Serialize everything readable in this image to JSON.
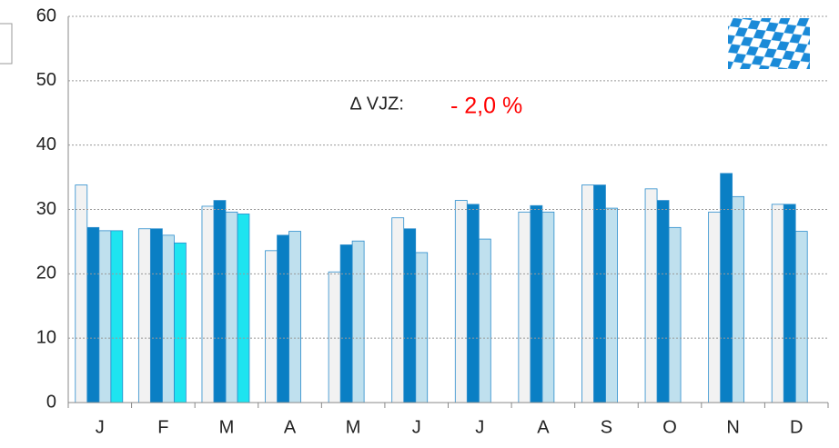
{
  "chart_data": {
    "type": "bar",
    "categories": [
      "J",
      "F",
      "M",
      "A",
      "M",
      "J",
      "J",
      "A",
      "S",
      "O",
      "N",
      "D"
    ],
    "series": [
      {
        "color": "#f2f2f2",
        "values": [
          33.8,
          27,
          30.5,
          23.6,
          20.3,
          28.7,
          31.4,
          29.6,
          33.8,
          33.2,
          29.6,
          30.8
        ]
      },
      {
        "color": "#0a7fc4",
        "values": [
          27.2,
          27,
          31.4,
          26,
          24.5,
          27,
          30.8,
          30.6,
          33.8,
          31.4,
          35.6,
          30.8
        ]
      },
      {
        "color": "#bfe0ee",
        "values": [
          26.7,
          26,
          29.6,
          26.6,
          25.1,
          23.3,
          25.4,
          29.6,
          30.2,
          27.2,
          32,
          26.6
        ]
      },
      {
        "color": "#1ee4f0",
        "values": [
          26.7,
          24.8,
          29.3,
          null,
          null,
          null,
          null,
          null,
          null,
          null,
          null,
          null
        ]
      }
    ],
    "ylim": [
      0,
      60
    ],
    "yticks": [
      0,
      10,
      20,
      30,
      40,
      50,
      60
    ],
    "grid": true,
    "annotations": [
      "∆ VJZ:",
      "- 2,0 %"
    ],
    "annotation_color": "#ff0000"
  }
}
